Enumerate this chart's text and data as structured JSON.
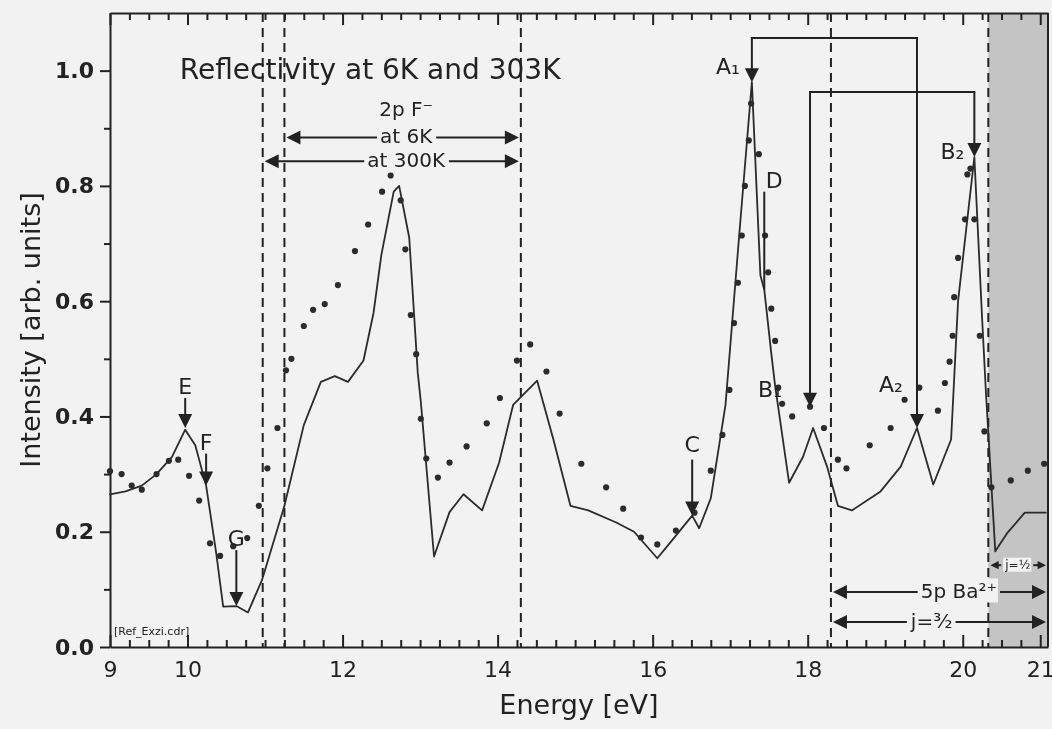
{
  "chart_data": {
    "type": "line",
    "title": "Reflectivity at 6K and 303K",
    "xlabel": "Energy [eV]",
    "ylabel": "Intensity [arb. units]",
    "xlim": [
      9,
      21.1
    ],
    "ylim": [
      0,
      1.1
    ],
    "xticks": [
      9,
      {
        "value": 9.25,
        "label": null
      },
      {
        "value": 9.5,
        "label": null
      },
      {
        "value": 9.75,
        "label": null
      },
      10,
      {
        "value": 10.25,
        "label": null
      },
      {
        "value": 10.5,
        "label": null
      },
      {
        "value": 10.75,
        "label": null
      },
      {
        "value": 11,
        "label": null
      },
      {
        "value": 11.25,
        "label": null
      },
      {
        "value": 11.5,
        "label": null
      },
      {
        "value": 11.75,
        "label": null
      },
      12,
      {
        "value": 12.25,
        "label": null
      },
      {
        "value": 12.5,
        "label": null
      },
      {
        "value": 12.75,
        "label": null
      },
      {
        "value": 13,
        "label": null
      },
      {
        "value": 13.25,
        "label": null
      },
      {
        "value": 13.5,
        "label": null
      },
      {
        "value": 13.75,
        "label": null
      },
      14,
      {
        "value": 14.25,
        "label": null
      },
      {
        "value": 14.5,
        "label": null
      },
      {
        "value": 14.75,
        "label": null
      },
      {
        "value": 15,
        "label": null
      },
      {
        "value": 15.25,
        "label": null
      },
      {
        "value": 15.5,
        "label": null
      },
      {
        "value": 15.75,
        "label": null
      },
      16,
      {
        "value": 16.25,
        "label": null
      },
      {
        "value": 16.5,
        "label": null
      },
      {
        "value": 16.75,
        "label": null
      },
      {
        "value": 17,
        "label": null
      },
      {
        "value": 17.25,
        "label": null
      },
      {
        "value": 17.5,
        "label": null
      },
      {
        "value": 17.75,
        "label": null
      },
      18,
      {
        "value": 18.25,
        "label": null
      },
      {
        "value": 18.5,
        "label": null
      },
      {
        "value": 18.75,
        "label": null
      },
      {
        "value": 19,
        "label": null
      },
      {
        "value": 19.25,
        "label": null
      },
      {
        "value": 19.5,
        "label": null
      },
      {
        "value": 19.75,
        "label": null
      },
      20,
      {
        "value": 20.25,
        "label": null
      },
      {
        "value": 20.5,
        "label": null
      },
      {
        "value": 20.75,
        "label": null
      },
      21
    ],
    "yticks": [
      {
        "value": 0,
        "label": "0.0"
      },
      {
        "value": 0.1,
        "label": null
      },
      0.2,
      {
        "value": 0.3,
        "label": null
      },
      0.4,
      {
        "value": 0.5,
        "label": null
      },
      0.6,
      {
        "value": 0.7,
        "label": null
      },
      0.8,
      {
        "value": 0.9,
        "label": null
      },
      {
        "value": 1,
        "label": "1.0"
      }
    ],
    "grid": false,
    "series": [
      {
        "color": "#2b2b2b",
        "marker": "none",
        "line_style": "solid",
        "x": [
          9.0,
          9.2,
          9.41,
          9.6,
          9.8,
          9.97,
          10.1,
          10.24,
          10.37,
          10.46,
          10.63,
          10.78,
          10.96,
          11.25,
          11.5,
          11.72,
          11.9,
          12.07,
          12.27,
          12.4,
          12.5,
          12.66,
          12.73,
          12.86,
          12.97,
          13.01,
          13.18,
          13.38,
          13.56,
          13.8,
          14.02,
          14.2,
          14.51,
          14.72,
          14.94,
          15.17,
          15.53,
          15.76,
          16.06,
          16.25,
          16.51,
          16.6,
          16.75,
          16.94,
          17.03,
          17.12,
          17.28,
          17.39,
          17.44,
          17.53,
          17.58,
          17.76,
          17.94,
          18.07,
          18.25,
          18.39,
          18.57,
          18.94,
          19.2,
          19.41,
          19.62,
          19.85,
          19.94,
          20.15,
          20.25,
          20.3,
          20.42,
          20.57,
          20.8,
          21.07
        ],
        "values": [
          0.265,
          0.27,
          0.28,
          0.3,
          0.33,
          0.377,
          0.35,
          0.28,
          0.163,
          0.07,
          0.071,
          0.06,
          0.116,
          0.245,
          0.385,
          0.46,
          0.47,
          0.46,
          0.497,
          0.58,
          0.68,
          0.79,
          0.8,
          0.71,
          0.476,
          0.425,
          0.157,
          0.234,
          0.265,
          0.237,
          0.32,
          0.42,
          0.462,
          0.36,
          0.245,
          0.237,
          0.216,
          0.2,
          0.154,
          0.185,
          0.228,
          0.206,
          0.258,
          0.42,
          0.57,
          0.72,
          0.98,
          0.645,
          0.62,
          0.51,
          0.453,
          0.285,
          0.33,
          0.38,
          0.313,
          0.245,
          0.237,
          0.27,
          0.313,
          0.38,
          0.282,
          0.36,
          0.6,
          0.85,
          0.57,
          0.44,
          0.166,
          0.197,
          0.233,
          0.233
        ]
      },
      {
        "type": "scatter",
        "color": "#2b2b2b",
        "marker": "circle",
        "x": [
          9.0,
          9.15,
          9.28,
          9.41,
          9.6,
          9.76,
          9.88,
          10.02,
          10.15,
          10.29,
          10.42,
          10.59,
          10.77,
          10.92,
          11.03,
          11.16,
          11.27,
          11.34,
          11.5,
          11.62,
          11.77,
          11.94,
          12.16,
          12.33,
          12.51,
          12.62,
          12.75,
          12.81,
          12.88,
          12.95,
          13.01,
          13.08,
          13.23,
          13.38,
          13.6,
          13.86,
          14.03,
          14.25,
          14.42,
          14.63,
          14.8,
          15.08,
          15.4,
          15.62,
          15.85,
          16.06,
          16.3,
          16.54,
          16.75,
          16.9,
          16.99,
          17.05,
          17.1,
          17.15,
          17.19,
          17.24,
          17.27,
          17.37,
          17.45,
          17.49,
          17.53,
          17.58,
          17.62,
          17.67,
          17.8,
          18.03,
          18.21,
          18.39,
          18.5,
          18.8,
          19.07,
          19.25,
          19.44,
          19.68,
          19.77,
          19.83,
          19.87,
          19.89,
          19.94,
          20.03,
          20.06,
          20.1,
          20.15,
          20.22,
          20.28,
          20.37,
          20.62,
          20.84,
          21.05
        ],
        "values": [
          0.305,
          0.3,
          0.28,
          0.273,
          0.3,
          0.323,
          0.325,
          0.297,
          0.254,
          0.18,
          0.158,
          0.175,
          0.189,
          0.245,
          0.31,
          0.38,
          0.48,
          0.5,
          0.557,
          0.585,
          0.595,
          0.628,
          0.687,
          0.733,
          0.79,
          0.818,
          0.775,
          0.69,
          0.576,
          0.508,
          0.396,
          0.327,
          0.294,
          0.32,
          0.348,
          0.388,
          0.432,
          0.497,
          0.525,
          0.478,
          0.405,
          0.318,
          0.277,
          0.24,
          0.19,
          0.178,
          0.202,
          0.233,
          0.306,
          0.368,
          0.446,
          0.562,
          0.632,
          0.714,
          0.8,
          0.879,
          0.943,
          0.855,
          0.714,
          0.65,
          0.587,
          0.531,
          0.45,
          0.422,
          0.4,
          0.417,
          0.38,
          0.325,
          0.31,
          0.35,
          0.38,
          0.429,
          0.45,
          0.41,
          0.458,
          0.495,
          0.54,
          0.607,
          0.675,
          0.742,
          0.82,
          0.83,
          0.742,
          0.54,
          0.374,
          0.277,
          0.289,
          0.306,
          0.318
        ]
      }
    ],
    "ref_lines": [
      {
        "axis": "x",
        "value": 10.97,
        "line_style": "dashed"
      },
      {
        "axis": "x",
        "value": 11.25,
        "line_style": "dashed"
      },
      {
        "axis": "x",
        "value": 14.3,
        "line_style": "dashed"
      },
      {
        "axis": "x",
        "value": 18.3,
        "line_style": "dashed"
      },
      {
        "axis": "x",
        "value": 20.33,
        "line_style": "dashed"
      }
    ],
    "bands": [
      {
        "axis": "x",
        "from": 20.33,
        "to": 21.1,
        "color": "#c4c4c4"
      }
    ],
    "annotations": [
      {
        "text": "E",
        "x": 9.97,
        "y": 0.38
      },
      {
        "text": "F",
        "x": 10.24,
        "y": 0.28
      },
      {
        "text": "G",
        "x": 10.63,
        "y": 0.071
      },
      {
        "text": "C",
        "x": 16.51,
        "y": 0.228
      },
      {
        "text": "D",
        "x": 17.44,
        "y": 0.62
      },
      {
        "text": "A₁",
        "x": 17.28,
        "y": 0.98
      },
      {
        "text": "B₁",
        "x": 18.03,
        "y": 0.417
      },
      {
        "text": "A₂",
        "x": 19.41,
        "y": 0.38
      },
      {
        "text": "B₂",
        "x": 20.15,
        "y": 0.85
      },
      "2p F⁻",
      {
        "text": "at 6K",
        "x": 14.3,
        "y": 0.884
      },
      {
        "text": "at 300K",
        "x": 14.3,
        "y": 0.843
      },
      "5p Ba²⁺",
      "j=³⁄₂",
      {
        "text": "j=½",
        "x": 20.33,
        "y": 0.142
      },
      "[Ref_Exzi.cdr]"
    ]
  }
}
